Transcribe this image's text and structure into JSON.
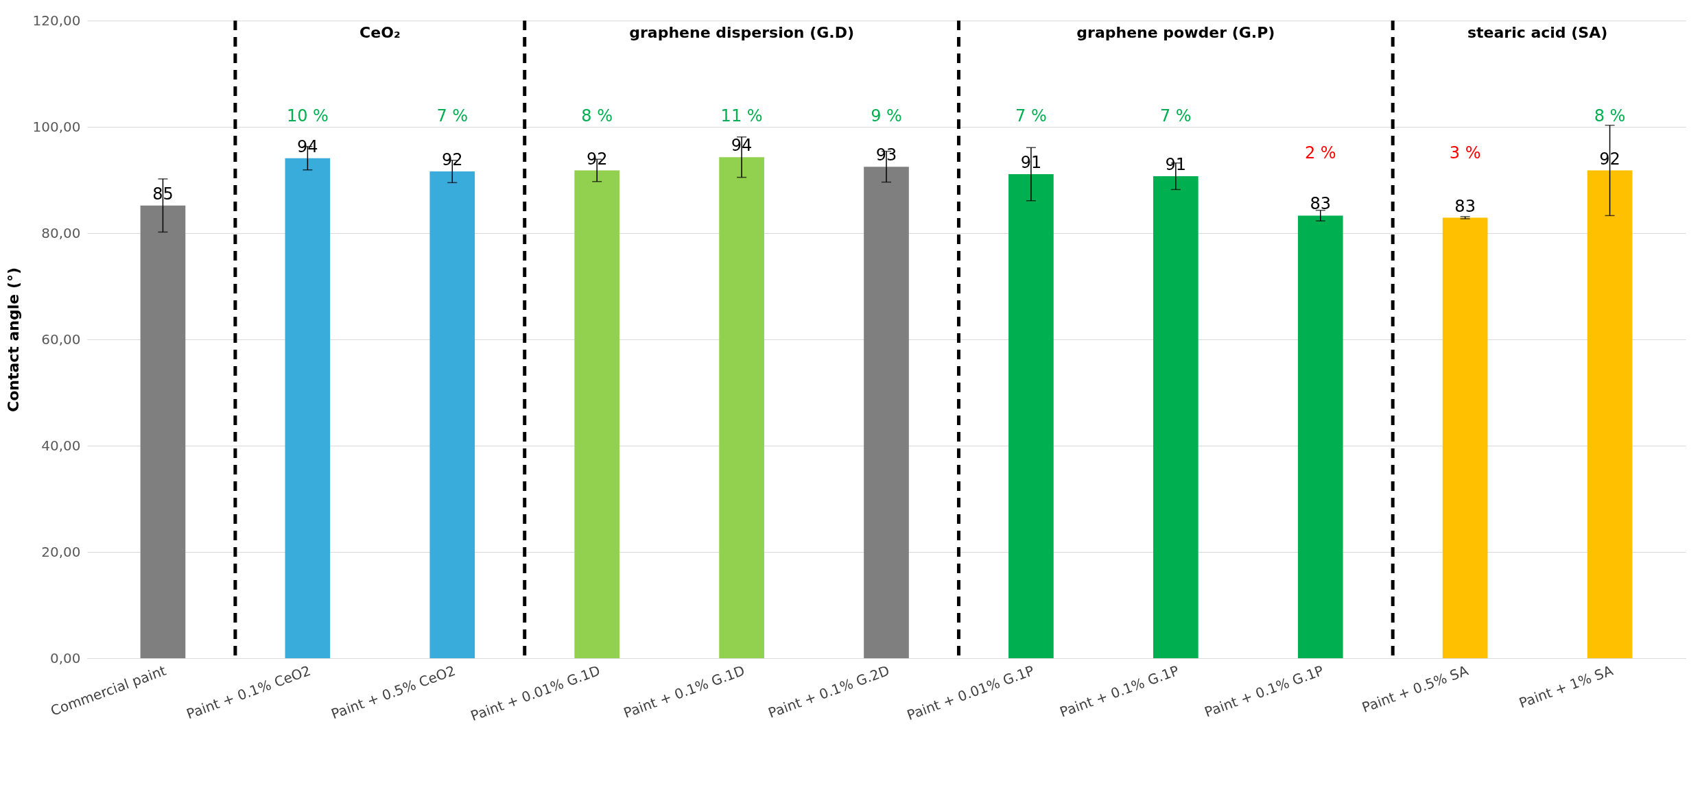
{
  "chart_data": {
    "type": "bar",
    "ylabel": "Contact angle (°)",
    "categories": [
      "Commercial paint",
      "Paint + 0.1% CeO2",
      "Paint + 0.5% CeO2",
      "Paint + 0.01% G.1D",
      "Paint + 0.1% G.1D",
      "Paint + 0.1% G.2D",
      "Paint + 0.01% G.1P",
      "Paint + 0.1% G.1P",
      "Paint + 0.1% G.1P",
      "Paint + 0.5% SA",
      "Paint + 1% SA"
    ],
    "values": [
      85.2,
      94.1,
      91.6,
      91.8,
      94.3,
      92.5,
      91.1,
      90.7,
      83.3,
      82.9,
      91.8
    ],
    "value_labels": [
      "85",
      "94",
      "92",
      "92",
      "94",
      "93",
      "91",
      "91",
      "83",
      "83",
      "92"
    ],
    "errors": [
      5,
      2.2,
      2.1,
      2.1,
      3.8,
      2.9,
      5,
      2.5,
      1,
      0.2,
      8.5
    ],
    "colors": [
      "#7f7f7f",
      "#3aacdc",
      "#3aacdc",
      "#92d050",
      "#92d050",
      "#7f7f7f",
      "#00b050",
      "#00b050",
      "#00b050",
      "#ffc000",
      "#ffc000"
    ],
    "ylim": [
      0,
      120
    ],
    "yticks": [
      {
        "value": 0,
        "label": "0,00"
      },
      {
        "value": 20,
        "label": "20,00"
      },
      {
        "value": 40,
        "label": "40,00"
      },
      {
        "value": 60,
        "label": "60,00"
      },
      {
        "value": 80,
        "label": "80,00"
      },
      {
        "value": 100,
        "label": "100,00"
      },
      {
        "value": 120,
        "label": "120,00"
      }
    ],
    "grid": "y",
    "annotations": [
      "CeO₂",
      "graphene dispersion (G.D)",
      "graphene powder (G.P)",
      "stearic acid (SA)",
      "10 %",
      "7 %",
      "8 %",
      "11 %",
      "9 %",
      "7 %",
      "7 %",
      "2 %",
      "3 %",
      "8 %"
    ]
  }
}
